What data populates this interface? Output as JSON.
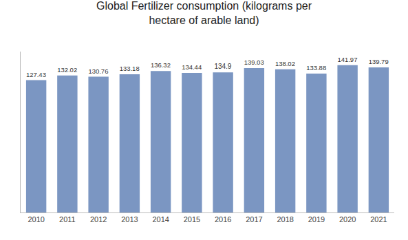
{
  "chart_data": {
    "type": "bar",
    "title": "Global Fertilizer consumption (kilograms per\nhectare of arable land)",
    "categories": [
      "2010",
      "2011",
      "2012",
      "2013",
      "2014",
      "2015",
      "2016",
      "2017",
      "2018",
      "2019",
      "2020",
      "2021"
    ],
    "values": [
      127.43,
      132.02,
      130.76,
      133.18,
      136.32,
      134.44,
      134.9,
      139.03,
      138.02,
      133.88,
      141.97,
      139.79
    ],
    "color": "#7B96C2",
    "ylim": [
      0,
      155
    ],
    "grid": false,
    "data_labels": true,
    "tick_labels": "x"
  }
}
